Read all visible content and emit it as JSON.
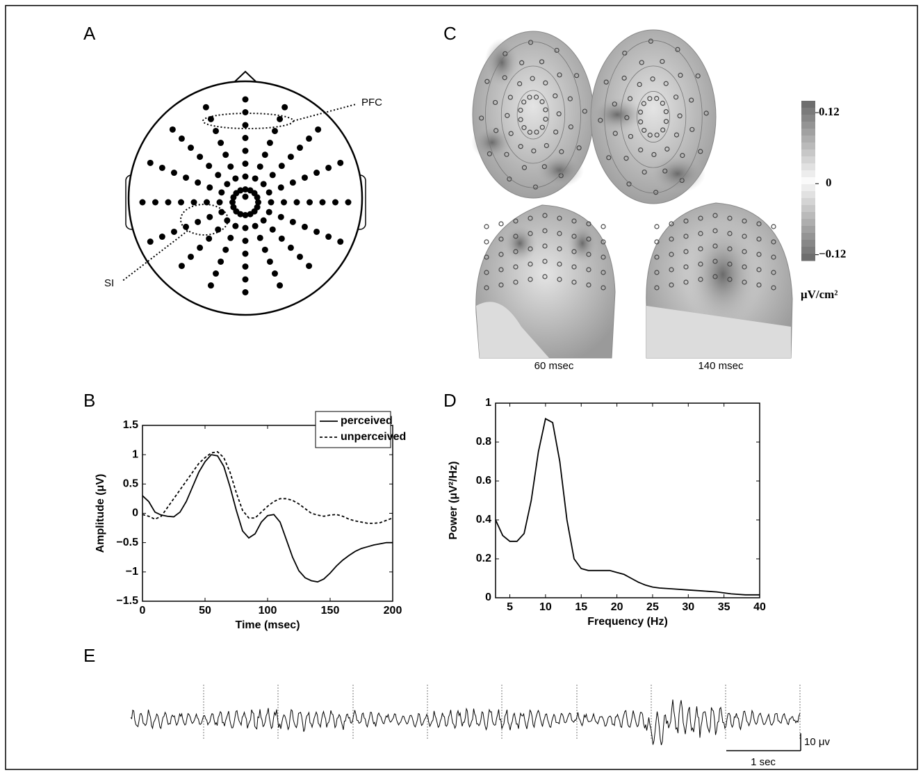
{
  "panel_labels": [
    "A",
    "B",
    "C",
    "D",
    "E"
  ],
  "panel_a": {
    "labels": [
      "PFC",
      "SI"
    ]
  },
  "panel_c": {
    "captions": [
      "60 msec",
      "140 msec"
    ],
    "colorbar": {
      "lim": [
        -0.13,
        0.14
      ],
      "ticks": [
        {
          "value": 0.12,
          "label": "0.12"
        },
        0,
        {
          "value": -0.12,
          "label": "−0.12"
        }
      ],
      "unit": "μV/cm²"
    }
  },
  "panel_e": {
    "scale_y": "10 μv",
    "scale_x": "1 sec"
  },
  "chart_data": [
    {
      "type": "line",
      "x_label": "Time (msec)",
      "y_label": "Amplitude (μV)",
      "x": [
        0,
        5,
        10,
        15,
        20,
        25,
        30,
        35,
        40,
        45,
        50,
        55,
        60,
        65,
        70,
        75,
        80,
        85,
        90,
        95,
        100,
        105,
        110,
        115,
        120,
        125,
        130,
        135,
        140,
        145,
        150,
        155,
        160,
        165,
        170,
        175,
        180,
        185,
        190,
        195,
        200
      ],
      "series": [
        {
          "name": "perceived",
          "color": "#000000",
          "line_style": "solid",
          "values": [
            0.3,
            0.2,
            0.02,
            -0.03,
            -0.05,
            -0.06,
            0.02,
            0.2,
            0.45,
            0.7,
            0.88,
            1.0,
            0.98,
            0.8,
            0.45,
            0.05,
            -0.3,
            -0.42,
            -0.35,
            -0.15,
            -0.04,
            -0.02,
            -0.15,
            -0.45,
            -0.75,
            -0.98,
            -1.1,
            -1.15,
            -1.17,
            -1.12,
            -1.02,
            -0.9,
            -0.8,
            -0.72,
            -0.65,
            -0.6,
            -0.57,
            -0.54,
            -0.52,
            -0.5,
            -0.5
          ]
        },
        {
          "name": "unperceived",
          "color": "#000000",
          "line_style": "dashed",
          "values": [
            -0.02,
            -0.05,
            -0.1,
            -0.05,
            0.1,
            0.25,
            0.4,
            0.55,
            0.7,
            0.85,
            0.95,
            1.03,
            1.05,
            0.95,
            0.7,
            0.35,
            0.05,
            -0.08,
            -0.08,
            0.02,
            0.12,
            0.2,
            0.25,
            0.25,
            0.22,
            0.16,
            0.08,
            0.0,
            -0.03,
            -0.05,
            -0.03,
            -0.02,
            -0.05,
            -0.1,
            -0.13,
            -0.15,
            -0.17,
            -0.17,
            -0.16,
            -0.12,
            -0.08
          ]
        }
      ],
      "xlim": [
        0,
        200
      ],
      "xticks": [
        0,
        50,
        100,
        150,
        200
      ],
      "ylim": [
        -1.5,
        1.5
      ],
      "yticks": [
        {
          "value": -1.5,
          "label": "−1.5"
        },
        {
          "value": -1,
          "label": "−1"
        },
        {
          "value": -0.5,
          "label": "−0.5"
        },
        0,
        0.5,
        1,
        1.5
      ],
      "legend": "upper right"
    },
    {
      "type": "line",
      "x_label": "Frequency (Hz)",
      "y_label": "Power (μV²/Hz)",
      "x": [
        3,
        4,
        5,
        6,
        7,
        8,
        9,
        10,
        11,
        12,
        13,
        14,
        15,
        16,
        17,
        18,
        19,
        20,
        21,
        22,
        23,
        24,
        25,
        26,
        28,
        30,
        32,
        34,
        36,
        38,
        40
      ],
      "values": [
        0.4,
        0.32,
        0.29,
        0.29,
        0.33,
        0.5,
        0.75,
        0.92,
        0.9,
        0.7,
        0.4,
        0.2,
        0.15,
        0.14,
        0.14,
        0.14,
        0.14,
        0.13,
        0.12,
        0.1,
        0.08,
        0.065,
        0.055,
        0.05,
        0.045,
        0.04,
        0.035,
        0.03,
        0.02,
        0.015,
        0.015
      ],
      "color": "#000000",
      "xlim": [
        3,
        40
      ],
      "xticks": [
        5,
        10,
        15,
        20,
        25,
        30,
        35,
        40
      ],
      "ylim": [
        0,
        1
      ],
      "yticks": [
        0,
        0.2,
        0.4,
        0.6,
        0.8,
        1
      ]
    }
  ]
}
